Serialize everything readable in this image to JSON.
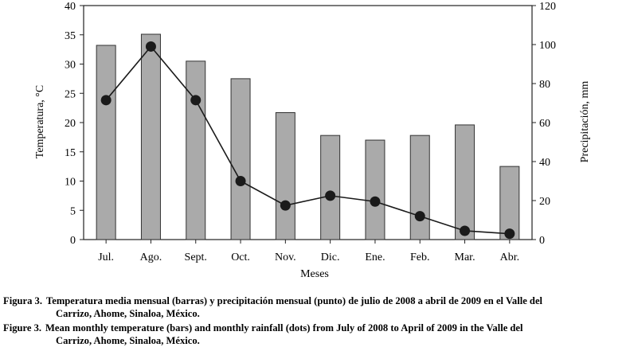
{
  "chart_data": {
    "type": "bar+line",
    "categories": [
      "Jul.",
      "Ago.",
      "Sept.",
      "Oct.",
      "Nov.",
      "Dic.",
      "Ene.",
      "Feb.",
      "Mar.",
      "Abr."
    ],
    "xlabel": "Meses",
    "ylabel_left": "Temperatura, °C",
    "ylabel_right": "Precipitación, mm",
    "ylim_left": [
      0,
      40
    ],
    "ylim_right": [
      0,
      120
    ],
    "yticks_left": [
      "0",
      "5",
      "10",
      "15",
      "20",
      "25",
      "30",
      "35",
      "40"
    ],
    "yticks_right": [
      "0",
      "20",
      "40",
      "60",
      "80",
      "100",
      "120"
    ],
    "series": [
      {
        "type": "bar",
        "axis": "left",
        "values": [
          33.2,
          35.1,
          30.5,
          27.5,
          21.7,
          17.8,
          17.0,
          17.8,
          19.6,
          12.5
        ]
      },
      {
        "type": "line",
        "axis": "right",
        "marker": "dot",
        "values": [
          71.5,
          99.0,
          71.5,
          30.0,
          17.5,
          22.5,
          19.5,
          12.0,
          4.5,
          3.0
        ]
      }
    ],
    "colors": {
      "bar_fill": "#aaaaaa",
      "bar_stroke": "#333333",
      "line": "#1a1a1a"
    }
  },
  "caption": {
    "es_label": "Figura 3.",
    "es_text": "Temperatura media mensual (barras) y precipitación mensual (punto) de julio de 2008 a abril de 2009 en el Valle del",
    "es_text2": "Carrizo, Ahome, Sinaloa, México.",
    "en_label": "Figure 3.",
    "en_text": "Mean monthly temperature (bars) and monthly rainfall (dots) from July of 2008 to April of 2009 in the Valle del",
    "en_text2": "Carrizo, Ahome, Sinaloa, México."
  }
}
